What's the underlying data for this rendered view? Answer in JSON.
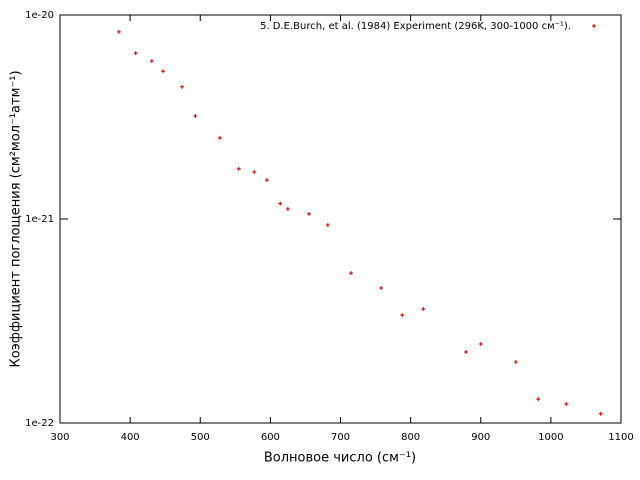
{
  "chart_data": {
    "type": "scatter",
    "xlabel": "Волновое число (см⁻¹)",
    "ylabel": "Коэффициент поглощения (см²мол⁻¹атм⁻¹)",
    "series": [
      {
        "name": "5. D.E.Burch, et al. (1984) Experiment (296K, 300-1000 см⁻¹).",
        "color": "#cc0000",
        "x": [
          384,
          408,
          431,
          447,
          474,
          493,
          528,
          555,
          577,
          595,
          614,
          625,
          655,
          682,
          715,
          758,
          788,
          818,
          879,
          900,
          950,
          982,
          1022,
          1071
        ],
        "values": [
          8.26e-21,
          6.5e-21,
          5.95e-21,
          5.3e-21,
          4.44e-21,
          3.2e-21,
          2.5e-21,
          1.76e-21,
          1.7e-21,
          1.55e-21,
          1.19e-21,
          1.12e-21,
          1.06e-21,
          9.35e-22,
          5.43e-22,
          4.59e-22,
          3.38e-22,
          3.62e-22,
          2.23e-22,
          2.44e-22,
          1.99e-22,
          1.31e-22,
          1.24e-22,
          1.11e-22
        ]
      }
    ],
    "xlim": [
      300,
      1100
    ],
    "xticks": [
      300,
      400,
      500,
      600,
      700,
      800,
      900,
      1000,
      1100
    ],
    "ylim": [
      1e-22,
      1e-20
    ],
    "yticks": [
      1e-22,
      1e-21,
      1e-20
    ],
    "ylog": true,
    "grid": false,
    "legend": "top-right"
  }
}
